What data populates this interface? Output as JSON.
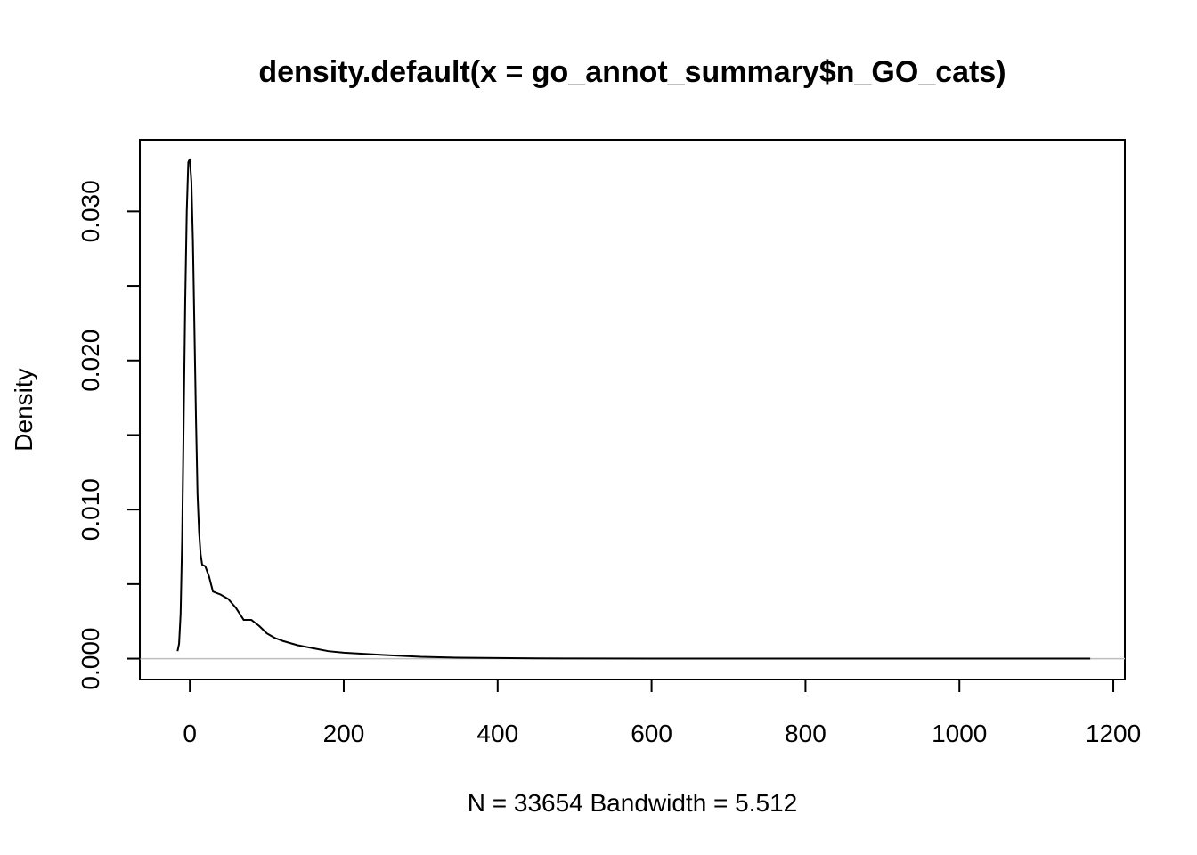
{
  "chart_data": {
    "type": "line",
    "title": "density.default(x = go_annot_summary$n_GO_cats)",
    "xlabel": "N = 33654   Bandwidth = 5.512",
    "ylabel": "Density",
    "xlim": [
      -65,
      1215
    ],
    "ylim": [
      -0.0014,
      0.0348
    ],
    "x_ticks": [
      0,
      200,
      400,
      600,
      800,
      1000,
      1200
    ],
    "x_tick_labels": [
      "0",
      "200",
      "400",
      "600",
      "800",
      "1000",
      "1200"
    ],
    "y_ticks": [
      0.0,
      0.005,
      0.01,
      0.015,
      0.02,
      0.025,
      0.03
    ],
    "y_tick_labels": [
      "0.000",
      "",
      "0.010",
      "",
      "0.020",
      "",
      "0.030"
    ],
    "grid": false,
    "legend": "none",
    "zero_line": true,
    "colors": {
      "line": "#000000",
      "zero_line": "#bebebe"
    },
    "series": [
      {
        "x": [
          -16,
          -14,
          -12,
          -10,
          -8,
          -6,
          -4,
          -2,
          0,
          2,
          4,
          6,
          8,
          10,
          12,
          14,
          16,
          20,
          25,
          30,
          35,
          40,
          50,
          60,
          70,
          80,
          90,
          100,
          110,
          120,
          140,
          160,
          180,
          200,
          250,
          300,
          350,
          400,
          450,
          500,
          600,
          800,
          1000,
          1170
        ],
        "y": [
          0.0005,
          0.001,
          0.003,
          0.008,
          0.016,
          0.024,
          0.03,
          0.0333,
          0.0335,
          0.032,
          0.028,
          0.022,
          0.016,
          0.011,
          0.0085,
          0.007,
          0.0063,
          0.0062,
          0.0055,
          0.0045,
          0.0044,
          0.0043,
          0.004,
          0.0034,
          0.0026,
          0.0026,
          0.0022,
          0.0017,
          0.0014,
          0.0012,
          0.0009,
          0.0007,
          0.0005,
          0.0004,
          0.00025,
          0.00012,
          6e-05,
          4e-05,
          2e-05,
          1e-05,
          5e-06,
          2e-06,
          1e-06,
          0.0
        ]
      }
    ]
  }
}
